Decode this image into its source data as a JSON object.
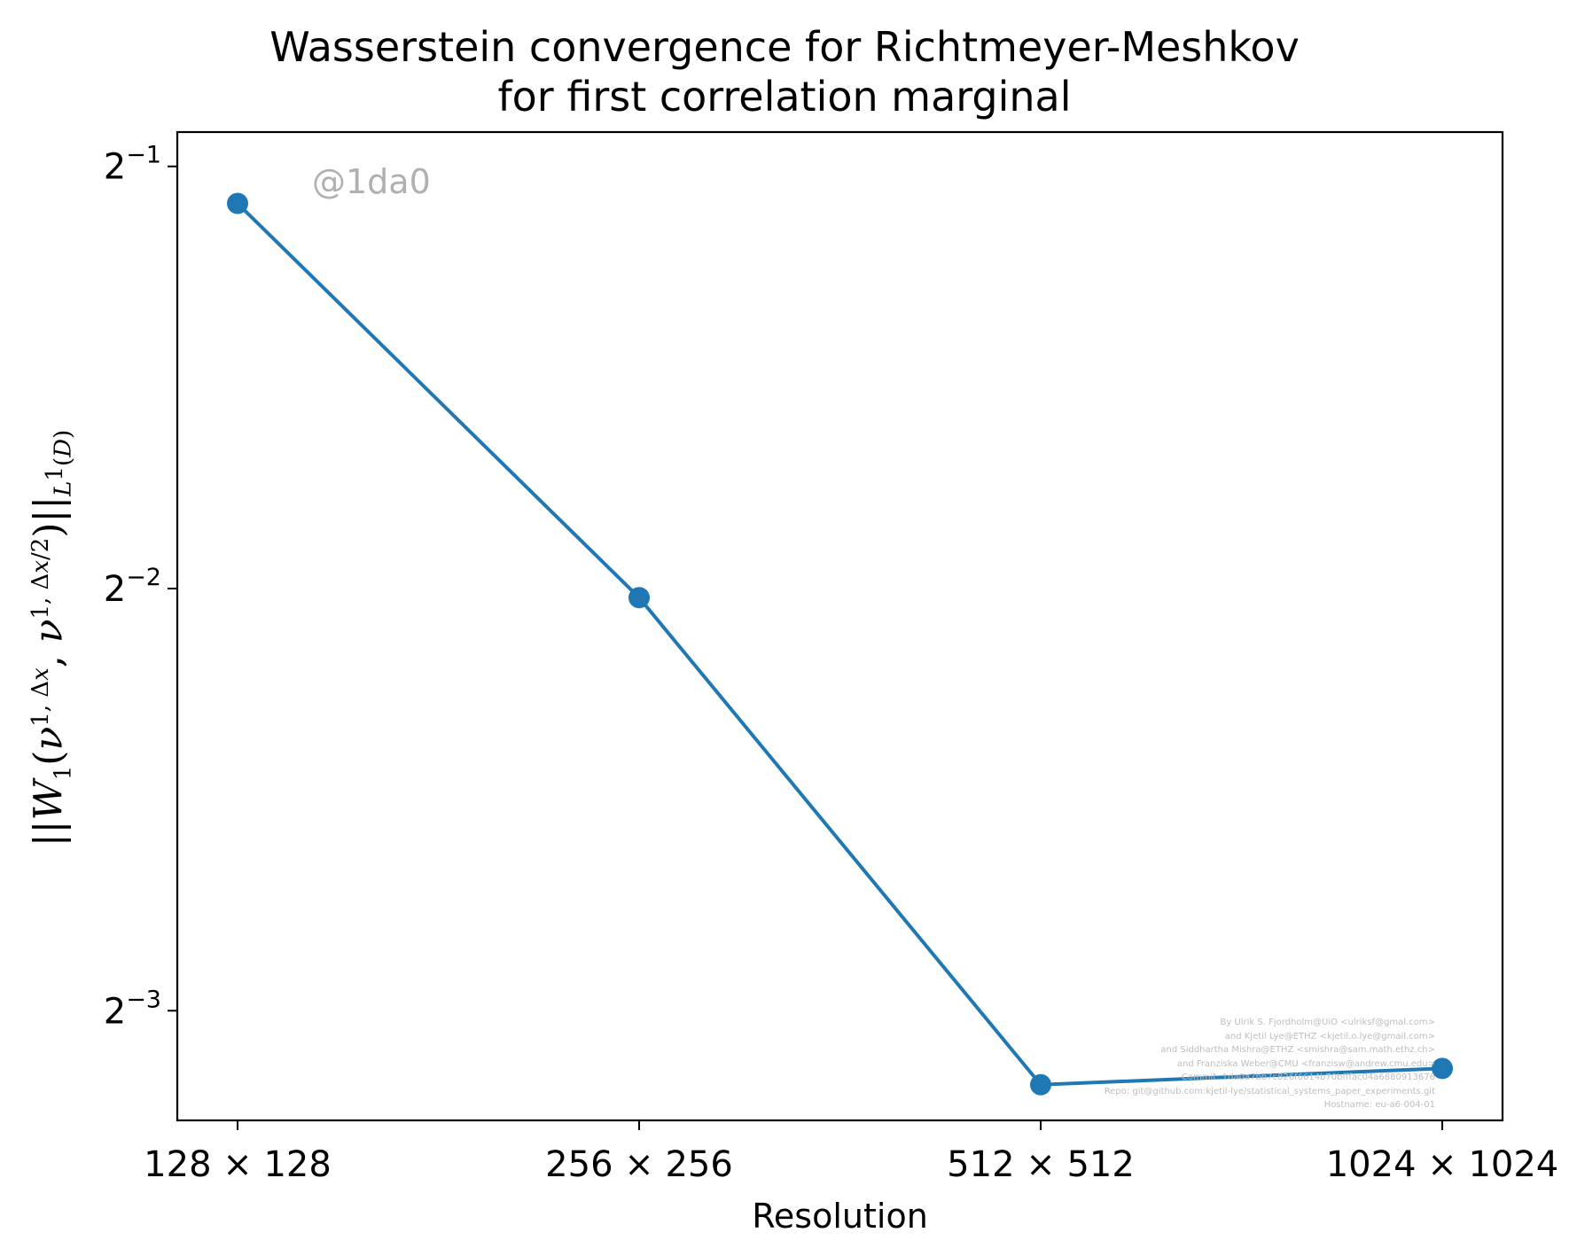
{
  "chart_data": {
    "type": "line",
    "title": [
      "Wasserstein convergence for Richtmeyer-Meshkov",
      "for first correlation marginal"
    ],
    "xlabel": "Resolution",
    "ylabel": "||W₁(ν^{1,Δx}, ν^{1,Δx/2})||_{L¹(D)}",
    "yscale": "log2",
    "categories": [
      "128 × 128",
      "256 × 256",
      "512 × 512",
      "1024 × 1024"
    ],
    "values": [
      0.4705,
      0.2463,
      0.1107,
      0.1137
    ],
    "ylim": [
      0.1044,
      0.529
    ],
    "yticks": [
      {
        "base": "2",
        "exp": "−1",
        "value": 0.5
      },
      {
        "base": "2",
        "exp": "−2",
        "value": 0.25
      },
      {
        "base": "2",
        "exp": "−3",
        "value": 0.125
      }
    ],
    "grid": false,
    "legend": "none",
    "series_color": "#1f77b4"
  },
  "watermark": "@1da0",
  "credits": [
    "By Ulrik S. Fjordholm@UiO <ulriksf@gmal.com>",
    "and Kjetil Lye@ETHZ <kjetil.o.lye@gmail.com>",
    "and Siddhartha Mishra@ETHZ <smishra@sam.math.ethz.ch>",
    "and Franziska Weber@CMU <franzisw@andrew.cmu.edu>",
    "Commit: 1da0a7bb7c826f6614b70bfffac04a6880913676",
    "Repo: git@github.com:kjetil-lye/statistical_systems_paper_experiments.git",
    "Hostname: eu-a6-004-01"
  ]
}
